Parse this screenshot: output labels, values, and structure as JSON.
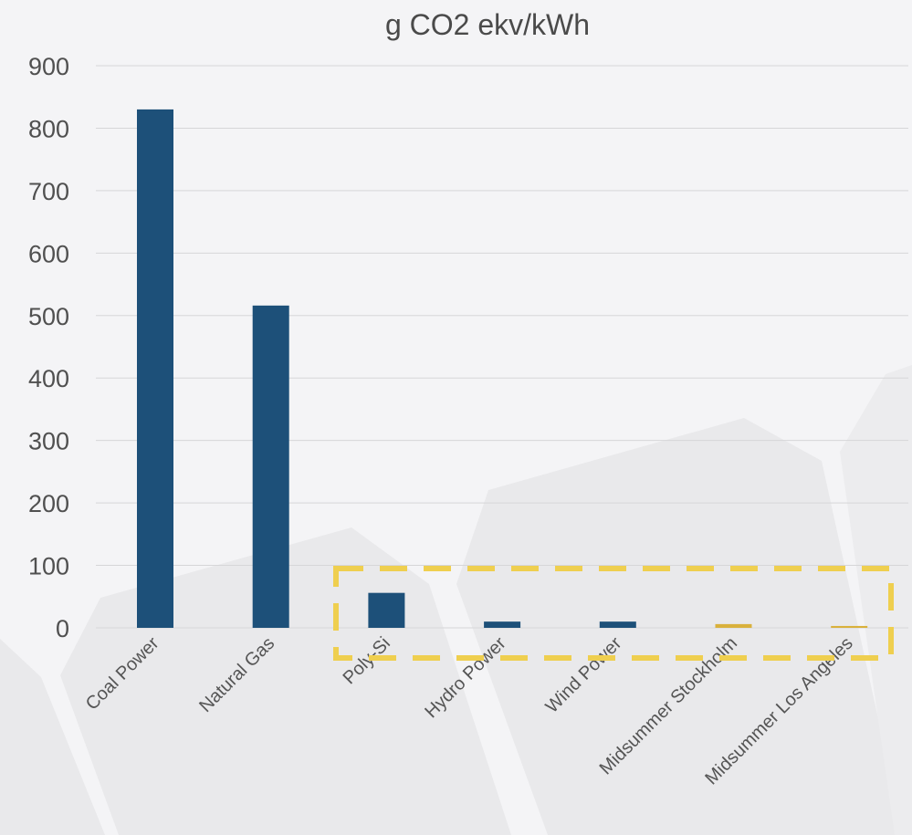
{
  "chart_data": {
    "type": "bar",
    "title": "g CO2 ekv/kWh",
    "xlabel": "",
    "ylabel": "",
    "categories": [
      "Coal Power",
      "Natural Gas",
      "Poly-Si",
      "Hydro Power",
      "Wind Power",
      "Midsummer Stockholm",
      "Midsummer Los Angeles"
    ],
    "values": [
      830,
      516,
      56,
      10,
      10,
      6,
      3
    ],
    "ylim": [
      0,
      900
    ],
    "yticks": [
      0,
      100,
      200,
      300,
      400,
      500,
      600,
      700,
      800,
      900
    ],
    "grid": true,
    "legend": "none",
    "highlight_categories": [
      "Poly-Si",
      "Hydro Power",
      "Wind Power",
      "Midsummer Stockholm",
      "Midsummer Los Angeles"
    ]
  },
  "colors": {
    "conventional_bar": "#1d5079",
    "midsummer_bar": "#d9b13c",
    "highlight_box": "#efcf4f",
    "background": "#f4f4f6"
  }
}
